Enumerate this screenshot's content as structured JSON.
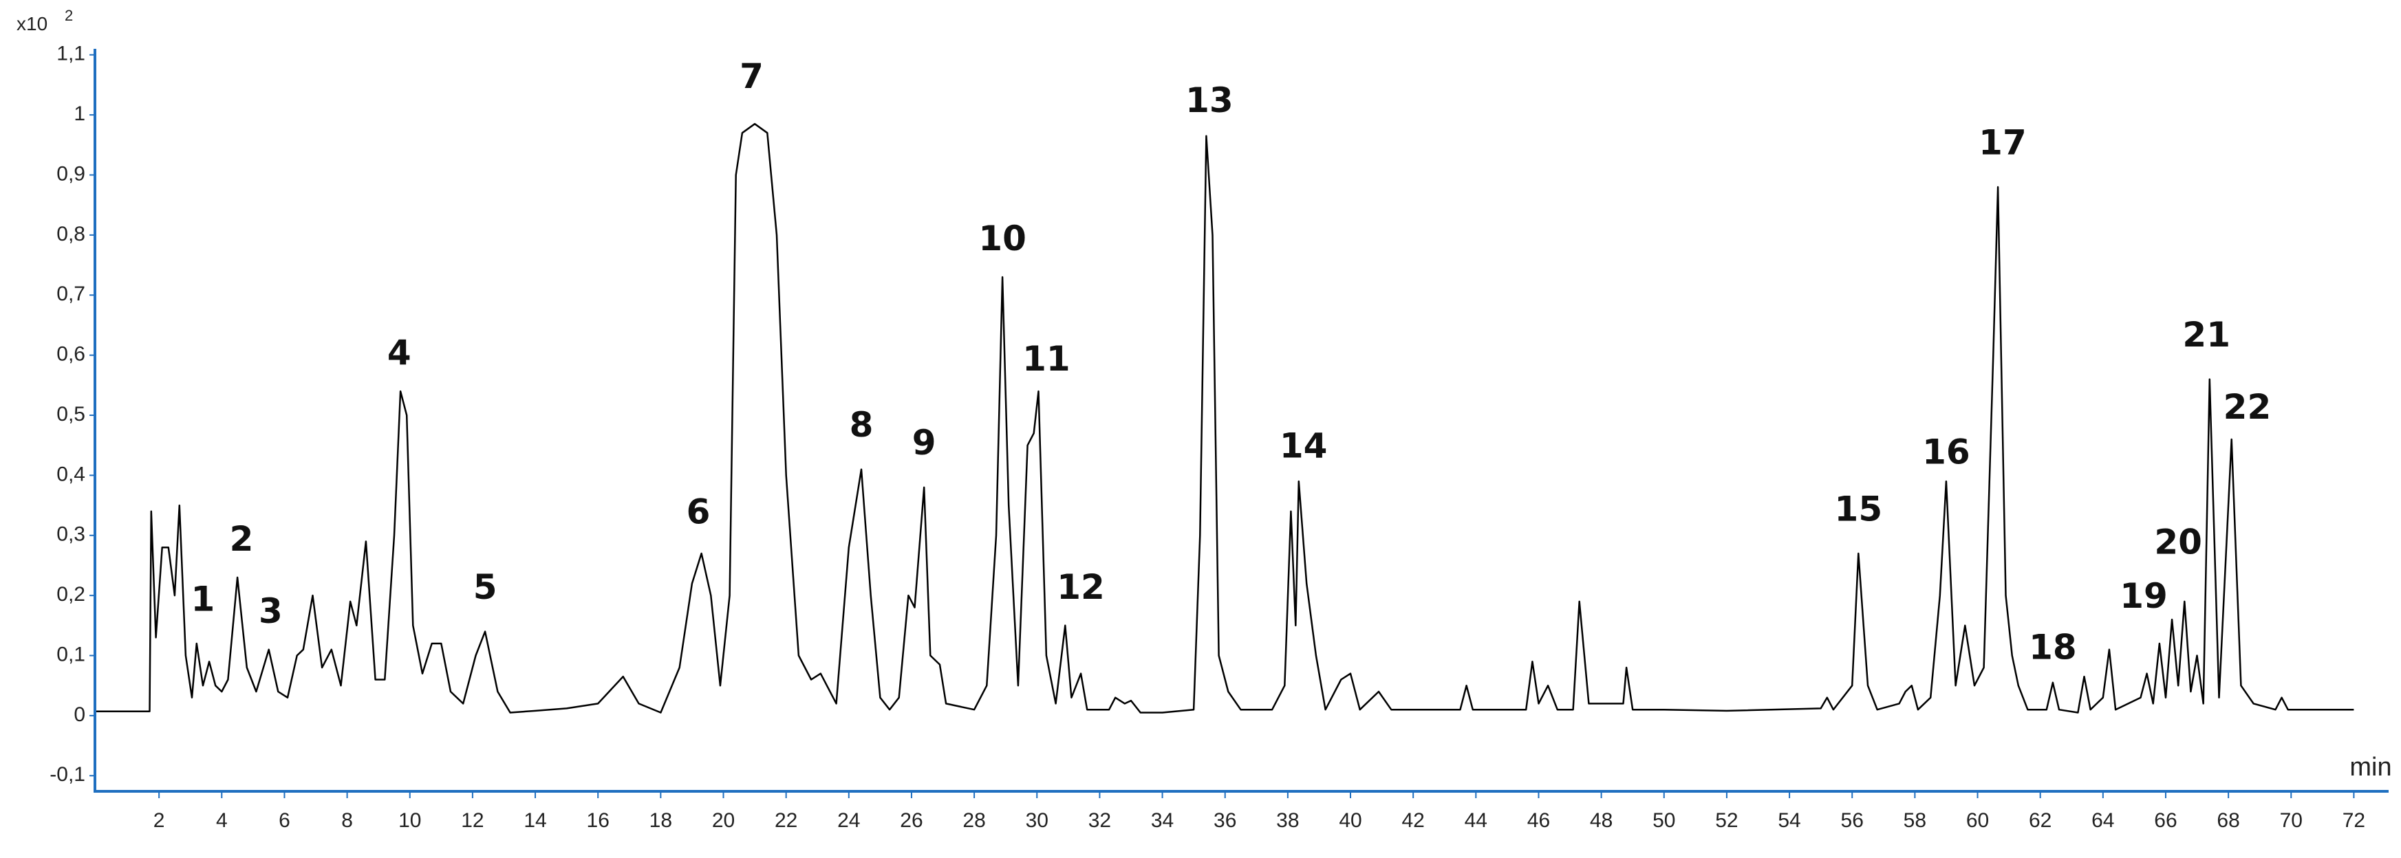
{
  "chart_data": {
    "type": "line",
    "color": "#000000",
    "x_label": "min",
    "y_multiplier": "x10",
    "y_multiplier_exp": "2",
    "xlim": [
      0,
      73
    ],
    "ylim": [
      -0.126,
      1.11
    ],
    "xticks": [
      2,
      4,
      6,
      8,
      10,
      12,
      14,
      16,
      18,
      20,
      22,
      24,
      26,
      28,
      30,
      32,
      34,
      36,
      38,
      40,
      42,
      44,
      46,
      48,
      50,
      52,
      54,
      56,
      58,
      60,
      62,
      64,
      66,
      68,
      70,
      72
    ],
    "yticks": [
      {
        "value": -0.1,
        "label": "-0,1"
      },
      0,
      {
        "value": 0.1,
        "label": "0,1"
      },
      {
        "value": 0.2,
        "label": "0,2"
      },
      {
        "value": 0.3,
        "label": "0,3"
      },
      {
        "value": 0.4,
        "label": "0,4"
      },
      {
        "value": 0.5,
        "label": "0,5"
      },
      {
        "value": 0.6,
        "label": "0,6"
      },
      {
        "value": 0.7,
        "label": "0,7"
      },
      {
        "value": 0.8,
        "label": "0,8"
      },
      {
        "value": 0.9,
        "label": "0,9"
      },
      1,
      {
        "value": 1.1,
        "label": "1,1"
      }
    ],
    "x": [
      0,
      1.7,
      1.75,
      1.9,
      2.1,
      2.3,
      2.5,
      2.65,
      2.85,
      3.05,
      3.2,
      3.4,
      3.6,
      3.8,
      4.0,
      4.2,
      4.5,
      4.8,
      5.1,
      5.5,
      5.8,
      6.1,
      6.4,
      6.6,
      6.9,
      7.2,
      7.5,
      7.8,
      8.1,
      8.3,
      8.6,
      8.9,
      9.2,
      9.5,
      9.7,
      9.9,
      10.1,
      10.4,
      10.7,
      11.0,
      11.3,
      11.7,
      12.1,
      12.4,
      12.8,
      13.2,
      14,
      15,
      16,
      16.8,
      17.3,
      18,
      18.6,
      19.0,
      19.3,
      19.6,
      19.9,
      20.2,
      20.4,
      20.6,
      21.0,
      21.4,
      21.7,
      22.0,
      22.4,
      22.8,
      23.1,
      23.6,
      24.0,
      24.4,
      24.7,
      25.0,
      25.3,
      25.6,
      25.9,
      26.1,
      26.4,
      26.6,
      26.9,
      27.1,
      28,
      28.4,
      28.7,
      28.9,
      29.1,
      29.4,
      29.7,
      29.9,
      30.05,
      30.3,
      30.6,
      30.9,
      31.1,
      31.4,
      31.6,
      32.3,
      32.5,
      32.8,
      33.0,
      33.3,
      34,
      35,
      35.2,
      35.4,
      35.6,
      35.8,
      36.1,
      36.5,
      37.5,
      37.9,
      38.1,
      38.25,
      38.35,
      38.6,
      38.9,
      39.2,
      39.7,
      40.0,
      40.3,
      40.9,
      41.3,
      43.5,
      43.7,
      43.9,
      45.6,
      45.8,
      46.0,
      46.3,
      46.6,
      47.1,
      47.3,
      47.6,
      48.7,
      48.8,
      49.0,
      50,
      52,
      55,
      55.2,
      55.4,
      56.0,
      56.2,
      56.5,
      56.8,
      57.5,
      57.7,
      57.9,
      58.1,
      58.5,
      58.8,
      59.0,
      59.3,
      59.6,
      59.9,
      60.2,
      60.5,
      60.65,
      60.9,
      61.1,
      61.3,
      61.6,
      62.2,
      62.4,
      62.6,
      63.2,
      63.4,
      63.6,
      64.0,
      64.2,
      64.4,
      65.2,
      65.4,
      65.6,
      65.8,
      66.0,
      66.2,
      66.4,
      66.6,
      66.8,
      67.0,
      67.2,
      67.4,
      67.7,
      68.1,
      68.4,
      68.8,
      69.5,
      69.7,
      69.9,
      71,
      72
    ],
    "values": [
      0.007,
      0.007,
      0.34,
      0.13,
      0.28,
      0.28,
      0.2,
      0.35,
      0.1,
      0.03,
      0.12,
      0.05,
      0.09,
      0.05,
      0.04,
      0.06,
      0.23,
      0.08,
      0.04,
      0.11,
      0.04,
      0.03,
      0.1,
      0.11,
      0.2,
      0.08,
      0.11,
      0.05,
      0.19,
      0.15,
      0.29,
      0.06,
      0.06,
      0.3,
      0.54,
      0.5,
      0.15,
      0.07,
      0.12,
      0.12,
      0.04,
      0.02,
      0.1,
      0.14,
      0.04,
      0.005,
      0.008,
      0.012,
      0.02,
      0.065,
      0.02,
      0.005,
      0.08,
      0.22,
      0.27,
      0.2,
      0.05,
      0.2,
      0.9,
      0.97,
      0.985,
      0.97,
      0.8,
      0.4,
      0.1,
      0.06,
      0.07,
      0.02,
      0.28,
      0.41,
      0.2,
      0.03,
      0.01,
      0.03,
      0.2,
      0.18,
      0.38,
      0.1,
      0.085,
      0.02,
      0.01,
      0.05,
      0.3,
      0.73,
      0.35,
      0.05,
      0.45,
      0.47,
      0.54,
      0.1,
      0.02,
      0.15,
      0.03,
      0.07,
      0.01,
      0.01,
      0.03,
      0.02,
      0.025,
      0.005,
      0.005,
      0.01,
      0.3,
      0.965,
      0.8,
      0.1,
      0.04,
      0.01,
      0.01,
      0.05,
      0.34,
      0.15,
      0.39,
      0.22,
      0.1,
      0.01,
      0.06,
      0.07,
      0.01,
      0.04,
      0.01,
      0.01,
      0.05,
      0.01,
      0.01,
      0.09,
      0.02,
      0.05,
      0.01,
      0.01,
      0.19,
      0.02,
      0.02,
      0.08,
      0.01,
      0.01,
      0.008,
      0.012,
      0.03,
      0.01,
      0.05,
      0.27,
      0.05,
      0.01,
      0.02,
      0.04,
      0.05,
      0.01,
      0.03,
      0.2,
      0.39,
      0.05,
      0.15,
      0.05,
      0.08,
      0.6,
      0.88,
      0.2,
      0.1,
      0.05,
      0.01,
      0.01,
      0.055,
      0.01,
      0.005,
      0.065,
      0.01,
      0.03,
      0.11,
      0.01,
      0.03,
      0.07,
      0.02,
      0.12,
      0.03,
      0.16,
      0.05,
      0.19,
      0.04,
      0.1,
      0.02,
      0.56,
      0.03,
      0.46,
      0.05,
      0.02,
      0.01,
      0.03,
      0.01,
      0.01,
      0.01
    ],
    "annotations": [
      {
        "text": "1",
        "x": 3.4,
        "y": 0.19
      },
      {
        "text": "2",
        "x": 4.63,
        "y": 0.29
      },
      {
        "text": "3",
        "x": 5.56,
        "y": 0.17
      },
      {
        "text": "4",
        "x": 9.66,
        "y": 0.6
      },
      {
        "text": "5",
        "x": 12.4,
        "y": 0.21
      },
      {
        "text": "6",
        "x": 19.2,
        "y": 0.335
      },
      {
        "text": "7",
        "x": 20.9,
        "y": 1.06
      },
      {
        "text": "8",
        "x": 24.4,
        "y": 0.48
      },
      {
        "text": "9",
        "x": 26.4,
        "y": 0.45
      },
      {
        "text": "10",
        "x": 28.9,
        "y": 0.79
      },
      {
        "text": "11",
        "x": 30.3,
        "y": 0.59
      },
      {
        "text": "12",
        "x": 31.4,
        "y": 0.21
      },
      {
        "text": "13",
        "x": 35.5,
        "y": 1.02
      },
      {
        "text": "14",
        "x": 38.5,
        "y": 0.445
      },
      {
        "text": "15",
        "x": 56.2,
        "y": 0.34
      },
      {
        "text": "16",
        "x": 59.0,
        "y": 0.435
      },
      {
        "text": "17",
        "x": 60.8,
        "y": 0.95
      },
      {
        "text": "18",
        "x": 62.4,
        "y": 0.11
      },
      {
        "text": "19",
        "x": 65.3,
        "y": 0.195
      },
      {
        "text": "20",
        "x": 66.4,
        "y": 0.285
      },
      {
        "text": "21",
        "x": 67.3,
        "y": 0.63
      },
      {
        "text": "22",
        "x": 68.6,
        "y": 0.51
      }
    ]
  }
}
